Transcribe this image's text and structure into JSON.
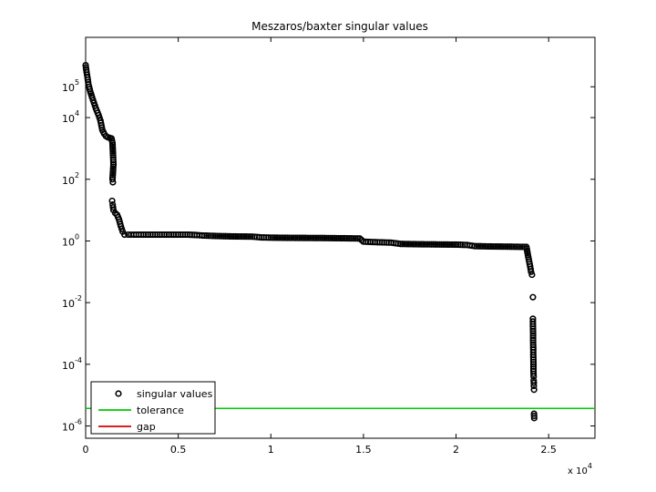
{
  "chart_data": {
    "type": "scatter",
    "title": "Meszaros/baxter singular values",
    "xlabel": "",
    "ylabel": "",
    "y_scale": "log",
    "xlim": [
      0,
      27500
    ],
    "ylim": [
      4e-07,
      4000000
    ],
    "x_ticks": [
      0,
      5000,
      10000,
      15000,
      20000,
      25000
    ],
    "x_tick_labels": [
      "0",
      "0.5",
      "1",
      "1.5",
      "2",
      "2.5"
    ],
    "x_multiplier": {
      "base": "x 10",
      "exp": "4"
    },
    "y_ticks": [
      {
        "value": 100000.0,
        "base": "10",
        "exp": "5"
      },
      {
        "value": 10000.0,
        "base": "10",
        "exp": "4"
      },
      {
        "value": 100.0,
        "base": "10",
        "exp": "2"
      },
      {
        "value": 1.0,
        "base": "10",
        "exp": "0"
      },
      {
        "value": 0.01,
        "base": "10",
        "exp": "-2"
      },
      {
        "value": 0.0001,
        "base": "10",
        "exp": "-4"
      },
      {
        "value": 1e-06,
        "base": "10",
        "exp": "-6"
      }
    ],
    "legend": {
      "position": "bottom-left",
      "entries": [
        "singular values",
        "tolerance",
        "gap"
      ]
    },
    "series": [
      {
        "name": "singular values",
        "marker": "circle",
        "color": "#000000",
        "points": [
          [
            0,
            500000
          ],
          [
            50,
            300000
          ],
          [
            100,
            200000
          ],
          [
            150,
            120000
          ],
          [
            250,
            70000
          ],
          [
            350,
            45000
          ],
          [
            450,
            30000
          ],
          [
            550,
            20000
          ],
          [
            700,
            12000
          ],
          [
            800,
            8000
          ],
          [
            900,
            4000
          ],
          [
            1000,
            3000
          ],
          [
            1100,
            2500
          ],
          [
            1200,
            2300
          ],
          [
            1300,
            2200
          ],
          [
            1400,
            2100
          ],
          [
            1450,
            1500
          ],
          [
            1480,
            600
          ],
          [
            1500,
            300
          ],
          [
            1450,
            100
          ],
          [
            1470,
            80
          ],
          [
            1430,
            20
          ],
          [
            1460,
            15
          ],
          [
            1500,
            10
          ],
          [
            1600,
            8
          ],
          [
            1700,
            7
          ],
          [
            1800,
            5
          ],
          [
            1900,
            3
          ],
          [
            2000,
            2
          ],
          [
            2100,
            1.6
          ],
          [
            2300,
            1.6
          ],
          [
            2600,
            1.6
          ],
          [
            3000,
            1.6
          ],
          [
            3500,
            1.6
          ],
          [
            4000,
            1.6
          ],
          [
            4500,
            1.6
          ],
          [
            5000,
            1.6
          ],
          [
            5500,
            1.6
          ],
          [
            6000,
            1.55
          ],
          [
            6300,
            1.5
          ],
          [
            7000,
            1.45
          ],
          [
            8000,
            1.4
          ],
          [
            9000,
            1.38
          ],
          [
            9500,
            1.3
          ],
          [
            10000,
            1.28
          ],
          [
            11000,
            1.26
          ],
          [
            12000,
            1.25
          ],
          [
            13000,
            1.24
          ],
          [
            14000,
            1.22
          ],
          [
            14800,
            1.2
          ],
          [
            15000,
            0.95
          ],
          [
            15500,
            0.92
          ],
          [
            16000,
            0.9
          ],
          [
            16500,
            0.88
          ],
          [
            17000,
            0.8
          ],
          [
            18000,
            0.78
          ],
          [
            19000,
            0.77
          ],
          [
            20000,
            0.76
          ],
          [
            20600,
            0.74
          ],
          [
            21000,
            0.68
          ],
          [
            22000,
            0.66
          ],
          [
            23000,
            0.65
          ],
          [
            23800,
            0.64
          ],
          [
            23900,
            0.3
          ],
          [
            24000,
            0.15
          ],
          [
            24050,
            0.1
          ],
          [
            24100,
            0.08
          ],
          [
            24150,
            0.015
          ],
          [
            24150,
            0.003
          ],
          [
            24150,
            0.002
          ],
          [
            24160,
            0.001
          ],
          [
            24160,
            0.0006
          ],
          [
            24170,
            0.0003
          ],
          [
            24170,
            0.0002
          ],
          [
            24180,
            0.0001
          ],
          [
            24180,
            6e-05
          ],
          [
            24190,
            4e-05
          ],
          [
            24190,
            3e-05
          ],
          [
            24200,
            2.5e-05
          ],
          [
            24200,
            2e-05
          ],
          [
            24210,
            1.5e-05
          ],
          [
            24210,
            2.5e-06
          ],
          [
            24220,
            1.8e-06
          ]
        ]
      },
      {
        "name": "tolerance",
        "type": "hline",
        "y": 3.7e-06,
        "color": "#00cc00"
      },
      {
        "name": "gap",
        "type": "line",
        "color": "#d40000",
        "points": []
      }
    ]
  }
}
